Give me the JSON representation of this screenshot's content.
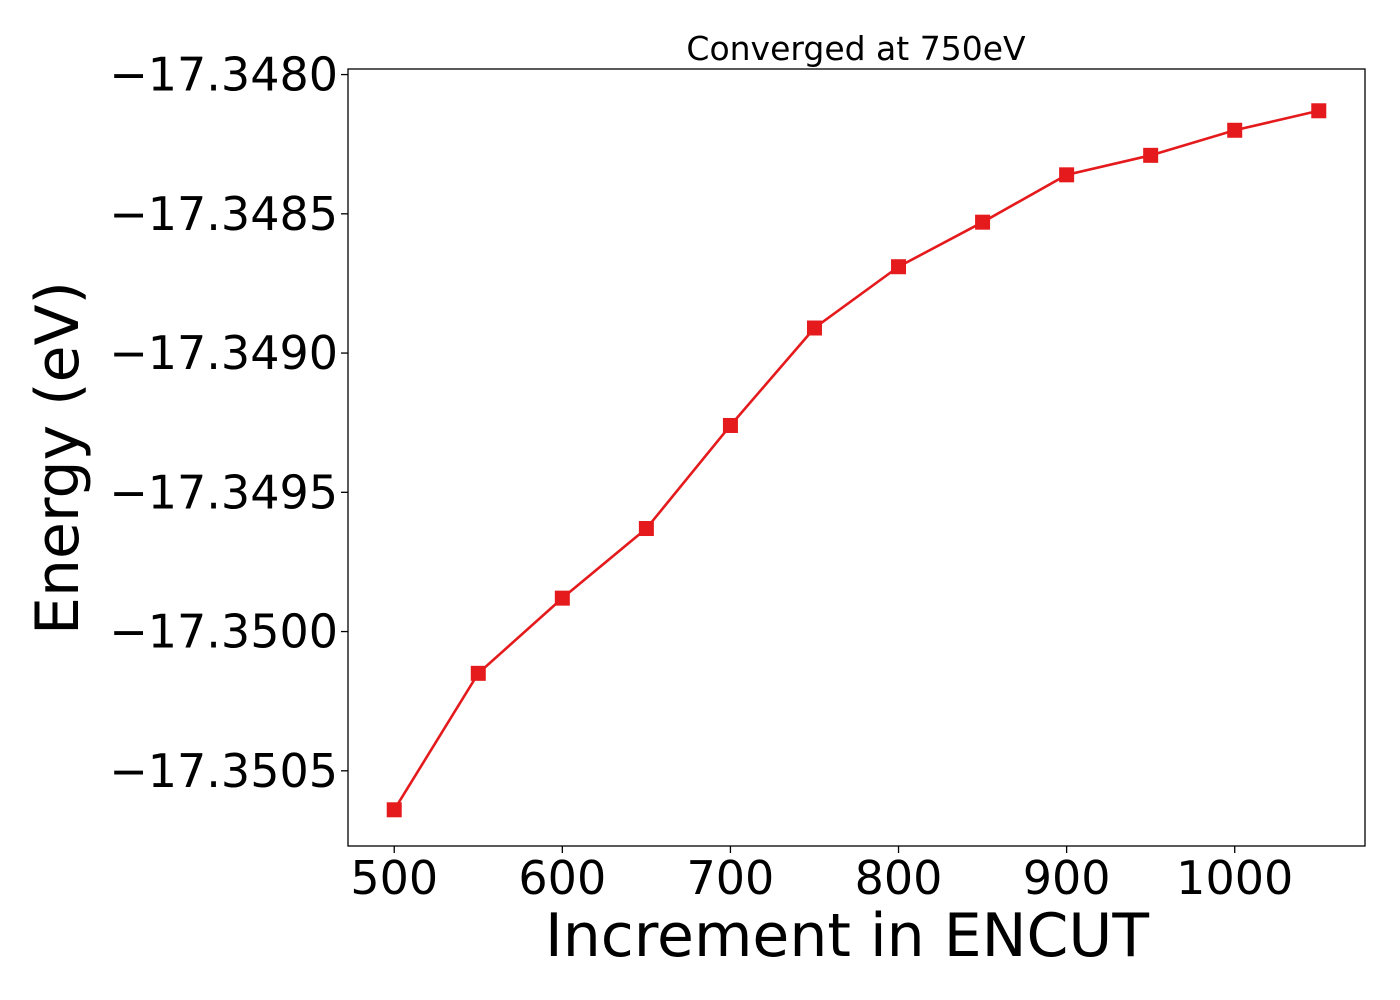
{
  "chart_data": {
    "type": "line",
    "title": "Converged at 750eV",
    "xlabel": "Increment in ENCUT",
    "ylabel": "Energy (eV)",
    "xlim": [
      472.5,
      1077.5
    ],
    "ylim": [
      -17.35077,
      -17.34798
    ],
    "x_ticks": [
      500,
      600,
      700,
      800,
      900,
      1000
    ],
    "x_tick_labels": [
      "500",
      "600",
      "700",
      "800",
      "900",
      "1000"
    ],
    "y_ticks": [
      -17.3505,
      -17.35,
      -17.3495,
      -17.349,
      -17.3485,
      -17.348
    ],
    "y_tick_labels": [
      "−17.3505",
      "−17.3500",
      "−17.3495",
      "−17.3490",
      "−17.3485",
      "−17.3480"
    ],
    "grid": false,
    "series": [
      {
        "marker": "square",
        "color": "#e41a1c",
        "x": [
          500,
          550,
          600,
          650,
          700,
          750,
          800,
          850,
          900,
          950,
          1000,
          1050
        ],
        "y": [
          -17.35064,
          -17.35015,
          -17.34988,
          -17.34963,
          -17.34926,
          -17.34891,
          -17.34869,
          -17.34853,
          -17.34836,
          -17.34829,
          -17.3482,
          -17.34813
        ]
      }
    ]
  }
}
